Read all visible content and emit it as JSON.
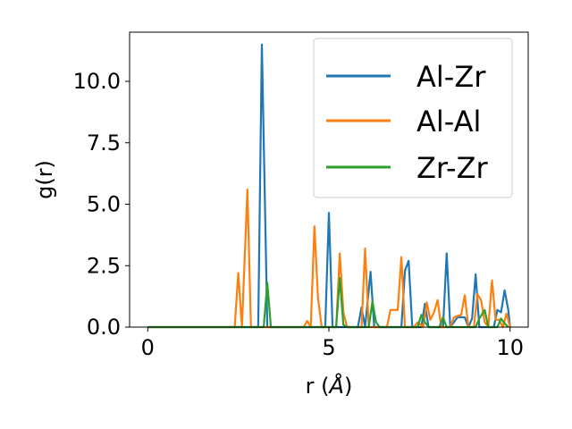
{
  "chart_data": {
    "type": "line",
    "xlabel_parts": [
      "r (",
      "Å",
      ")"
    ],
    "ylabel": "g(r)",
    "xlim": [
      -0.5,
      10.5
    ],
    "ylim": [
      0,
      12.0
    ],
    "xticks": [
      0,
      5,
      10
    ],
    "xtick_labels": [
      "0",
      "5",
      "10"
    ],
    "yticks": [
      0.0,
      2.5,
      5.0,
      7.5,
      10.0
    ],
    "ytick_labels": [
      "0.0",
      "2.5",
      "5.0",
      "7.5",
      "10.0"
    ],
    "grid": false,
    "legend_position": "top-right",
    "series": [
      {
        "name": "Al-Zr",
        "color": "#1f77b4",
        "points": [
          [
            0,
            0
          ],
          [
            2.9,
            0
          ],
          [
            3.05,
            0
          ],
          [
            3.15,
            11.5
          ],
          [
            3.3,
            0
          ],
          [
            4.9,
            0
          ],
          [
            5.0,
            4.65
          ],
          [
            5.1,
            0
          ],
          [
            5.8,
            0
          ],
          [
            5.9,
            0.8
          ],
          [
            6.0,
            0
          ],
          [
            6.15,
            2.25
          ],
          [
            6.25,
            0
          ],
          [
            7.0,
            0
          ],
          [
            7.1,
            2.3
          ],
          [
            7.2,
            2.7
          ],
          [
            7.3,
            0
          ],
          [
            7.55,
            0
          ],
          [
            7.65,
            0.95
          ],
          [
            7.75,
            0
          ],
          [
            8.15,
            0
          ],
          [
            8.25,
            3.0
          ],
          [
            8.35,
            0
          ],
          [
            8.55,
            0.4
          ],
          [
            8.75,
            0.4
          ],
          [
            8.85,
            0
          ],
          [
            8.95,
            0.35
          ],
          [
            9.05,
            2.15
          ],
          [
            9.15,
            0
          ],
          [
            9.55,
            0
          ],
          [
            9.65,
            0.7
          ],
          [
            9.75,
            0.6
          ],
          [
            9.85,
            1.5
          ],
          [
            9.95,
            0.7
          ],
          [
            10.0,
            0
          ]
        ]
      },
      {
        "name": "Al-Al",
        "color": "#ff7f0e",
        "points": [
          [
            0,
            0
          ],
          [
            2.4,
            0
          ],
          [
            2.5,
            2.2
          ],
          [
            2.6,
            0
          ],
          [
            2.75,
            5.6
          ],
          [
            2.85,
            0
          ],
          [
            4.3,
            0
          ],
          [
            4.4,
            0.25
          ],
          [
            4.5,
            0
          ],
          [
            4.6,
            4.1
          ],
          [
            4.7,
            1.2
          ],
          [
            4.8,
            0
          ],
          [
            5.2,
            0
          ],
          [
            5.3,
            3.0
          ],
          [
            5.4,
            0.6
          ],
          [
            5.5,
            0
          ],
          [
            5.9,
            0
          ],
          [
            6.0,
            3.2
          ],
          [
            6.1,
            0
          ],
          [
            6.6,
            0
          ],
          [
            6.7,
            0.7
          ],
          [
            6.9,
            0.7
          ],
          [
            7.0,
            2.85
          ],
          [
            7.1,
            0
          ],
          [
            7.35,
            0
          ],
          [
            7.45,
            0.2
          ],
          [
            7.6,
            0
          ],
          [
            7.7,
            1.0
          ],
          [
            7.8,
            0.3
          ],
          [
            7.9,
            0.6
          ],
          [
            8.0,
            1.1
          ],
          [
            8.1,
            0
          ],
          [
            8.35,
            0
          ],
          [
            8.45,
            0.4
          ],
          [
            8.65,
            0.5
          ],
          [
            8.75,
            1.3
          ],
          [
            8.85,
            0
          ],
          [
            9.0,
            0
          ],
          [
            9.1,
            1.35
          ],
          [
            9.2,
            1.1
          ],
          [
            9.3,
            0.2
          ],
          [
            9.4,
            0
          ],
          [
            9.5,
            1.9
          ],
          [
            9.6,
            0.3
          ],
          [
            9.7,
            0.3
          ],
          [
            9.8,
            0
          ],
          [
            9.9,
            0.55
          ],
          [
            10.0,
            0
          ]
        ]
      },
      {
        "name": "Zr-Zr",
        "color": "#2ca02c",
        "points": [
          [
            0,
            0
          ],
          [
            3.2,
            0
          ],
          [
            3.3,
            1.8
          ],
          [
            3.4,
            0
          ],
          [
            5.2,
            0
          ],
          [
            5.3,
            2.0
          ],
          [
            5.4,
            0.1
          ],
          [
            5.5,
            0
          ],
          [
            6.1,
            0
          ],
          [
            6.2,
            1.05
          ],
          [
            6.3,
            0.2
          ],
          [
            6.4,
            0
          ],
          [
            7.45,
            0
          ],
          [
            7.55,
            0.5
          ],
          [
            7.65,
            0.2
          ],
          [
            7.75,
            0
          ],
          [
            8.05,
            0
          ],
          [
            8.15,
            0.4
          ],
          [
            8.25,
            0
          ],
          [
            9.05,
            0
          ],
          [
            9.15,
            0.35
          ],
          [
            9.3,
            0.7
          ],
          [
            9.4,
            0
          ],
          [
            9.65,
            0
          ],
          [
            9.75,
            0.35
          ],
          [
            9.85,
            0.15
          ],
          [
            9.95,
            0
          ]
        ]
      }
    ]
  }
}
